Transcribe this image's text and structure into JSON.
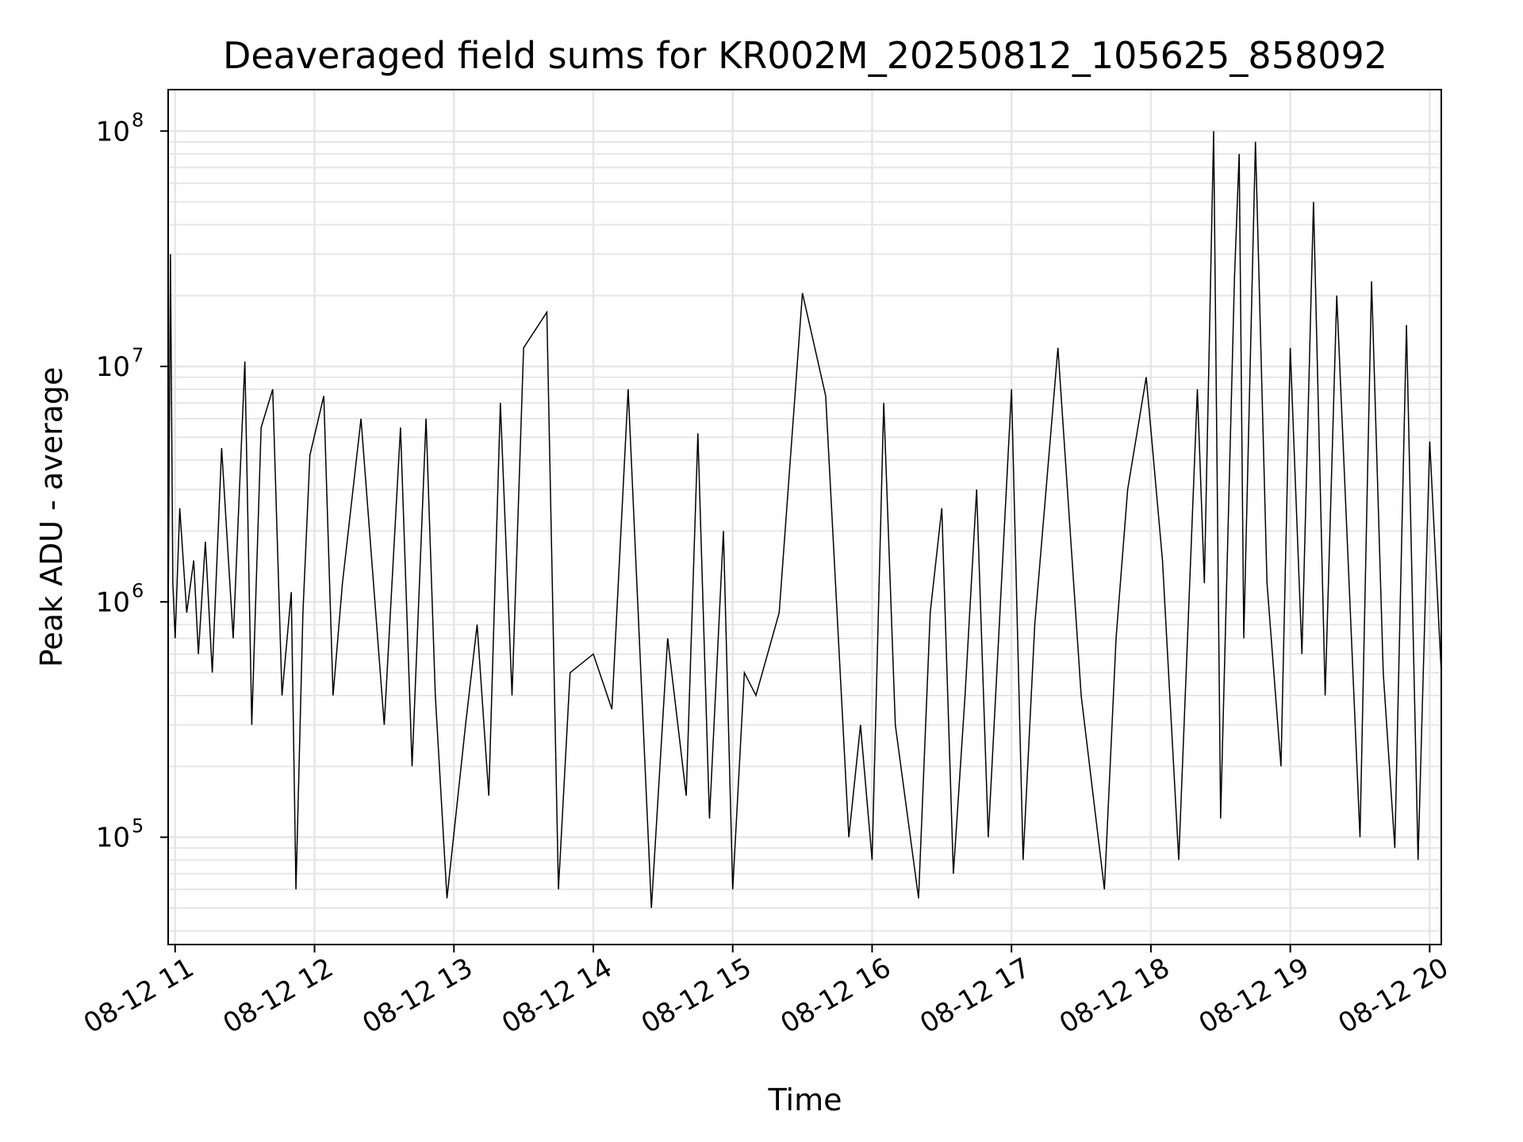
{
  "chart_data": {
    "type": "line",
    "title": "Deaveraged field sums for KR002M_20250812_105625_858092",
    "xlabel": "Time",
    "ylabel": "Peak ADU - average",
    "yscale": "log",
    "ylim": [
      35000,
      150000000
    ],
    "xlim": [
      "2025-08-12 10:57",
      "2025-08-12 20:05"
    ],
    "grid": true,
    "line_color": "#000000",
    "grid_color": "#e6e6e6",
    "x_ticks": [
      {
        "value": "2025-08-12 11:00",
        "label": "08-12 11"
      },
      {
        "value": "2025-08-12 12:00",
        "label": "08-12 12"
      },
      {
        "value": "2025-08-12 13:00",
        "label": "08-12 13"
      },
      {
        "value": "2025-08-12 14:00",
        "label": "08-12 14"
      },
      {
        "value": "2025-08-12 15:00",
        "label": "08-12 15"
      },
      {
        "value": "2025-08-12 16:00",
        "label": "08-12 16"
      },
      {
        "value": "2025-08-12 17:00",
        "label": "08-12 17"
      },
      {
        "value": "2025-08-12 18:00",
        "label": "08-12 18"
      },
      {
        "value": "2025-08-12 19:00",
        "label": "08-12 19"
      },
      {
        "value": "2025-08-12 20:00",
        "label": "08-12 20"
      }
    ],
    "y_ticks": [
      {
        "value": 100000,
        "base": "10",
        "exp": "5"
      },
      {
        "value": 1000000,
        "base": "10",
        "exp": "6"
      },
      {
        "value": 10000000,
        "base": "10",
        "exp": "7"
      },
      {
        "value": 100000000,
        "base": "10",
        "exp": "8"
      }
    ],
    "series": [
      {
        "x": [
          "2025-08-12 10:57",
          "2025-08-12 10:58",
          "2025-08-12 10:59",
          "2025-08-12 11:00",
          "2025-08-12 11:02",
          "2025-08-12 11:05",
          "2025-08-12 11:08",
          "2025-08-12 11:10",
          "2025-08-12 11:13",
          "2025-08-12 11:16",
          "2025-08-12 11:20",
          "2025-08-12 11:25",
          "2025-08-12 11:30",
          "2025-08-12 11:33",
          "2025-08-12 11:37",
          "2025-08-12 11:42",
          "2025-08-12 11:46",
          "2025-08-12 11:50",
          "2025-08-12 11:52",
          "2025-08-12 11:55",
          "2025-08-12 11:58",
          "2025-08-12 12:04",
          "2025-08-12 12:08",
          "2025-08-12 12:12",
          "2025-08-12 12:20",
          "2025-08-12 12:30",
          "2025-08-12 12:37",
          "2025-08-12 12:42",
          "2025-08-12 12:48",
          "2025-08-12 12:52",
          "2025-08-12 12:57",
          "2025-08-12 13:05",
          "2025-08-12 13:10",
          "2025-08-12 13:15",
          "2025-08-12 13:20",
          "2025-08-12 13:25",
          "2025-08-12 13:30",
          "2025-08-12 13:40",
          "2025-08-12 13:45",
          "2025-08-12 13:50",
          "2025-08-12 14:00",
          "2025-08-12 14:08",
          "2025-08-12 14:15",
          "2025-08-12 14:25",
          "2025-08-12 14:32",
          "2025-08-12 14:40",
          "2025-08-12 14:45",
          "2025-08-12 14:50",
          "2025-08-12 14:56",
          "2025-08-12 15:00",
          "2025-08-12 15:05",
          "2025-08-12 15:10",
          "2025-08-12 15:20",
          "2025-08-12 15:30",
          "2025-08-12 15:40",
          "2025-08-12 15:50",
          "2025-08-12 15:55",
          "2025-08-12 16:00",
          "2025-08-12 16:05",
          "2025-08-12 16:10",
          "2025-08-12 16:20",
          "2025-08-12 16:25",
          "2025-08-12 16:30",
          "2025-08-12 16:35",
          "2025-08-12 16:40",
          "2025-08-12 16:45",
          "2025-08-12 16:50",
          "2025-08-12 17:00",
          "2025-08-12 17:05",
          "2025-08-12 17:10",
          "2025-08-12 17:20",
          "2025-08-12 17:30",
          "2025-08-12 17:40",
          "2025-08-12 17:45",
          "2025-08-12 17:50",
          "2025-08-12 17:58",
          "2025-08-12 18:05",
          "2025-08-12 18:12",
          "2025-08-12 18:20",
          "2025-08-12 18:23",
          "2025-08-12 18:27",
          "2025-08-12 18:30",
          "2025-08-12 18:36",
          "2025-08-12 18:38",
          "2025-08-12 18:40",
          "2025-08-12 18:45",
          "2025-08-12 18:50",
          "2025-08-12 18:56",
          "2025-08-12 19:00",
          "2025-08-12 19:05",
          "2025-08-12 19:10",
          "2025-08-12 19:15",
          "2025-08-12 19:20",
          "2025-08-12 19:30",
          "2025-08-12 19:35",
          "2025-08-12 19:40",
          "2025-08-12 19:45",
          "2025-08-12 19:50",
          "2025-08-12 19:55",
          "2025-08-12 20:00",
          "2025-08-12 20:05"
        ],
        "y": [
          800000,
          30000000,
          1200000,
          700000,
          2500000,
          900000,
          1500000,
          600000,
          1800000,
          500000,
          4500000,
          700000,
          10500000,
          300000,
          5500000,
          8000000,
          400000,
          1100000,
          60000,
          900000,
          4200000,
          7500000,
          400000,
          1200000,
          6000000,
          300000,
          5500000,
          200000,
          6000000,
          400000,
          55000,
          300000,
          800000,
          150000,
          7000000,
          400000,
          12000000,
          17000000,
          60000,
          500000,
          600000,
          350000,
          8000000,
          50000,
          700000,
          150000,
          5200000,
          120000,
          2000000,
          60000,
          500000,
          400000,
          900000,
          20500000,
          7500000,
          100000,
          300000,
          80000,
          7000000,
          300000,
          55000,
          900000,
          2500000,
          70000,
          400000,
          3000000,
          100000,
          8000000,
          80000,
          800000,
          12000000,
          400000,
          60000,
          700000,
          3000000,
          9000000,
          1500000,
          80000,
          8000000,
          1200000,
          100000000,
          120000,
          24000000,
          80000000,
          700000,
          90000000,
          1200000,
          200000,
          12000000,
          600000,
          50000000,
          400000,
          20000000,
          100000,
          23000000,
          500000,
          90000,
          15000000,
          80000,
          4800000,
          500000
        ]
      }
    ]
  }
}
